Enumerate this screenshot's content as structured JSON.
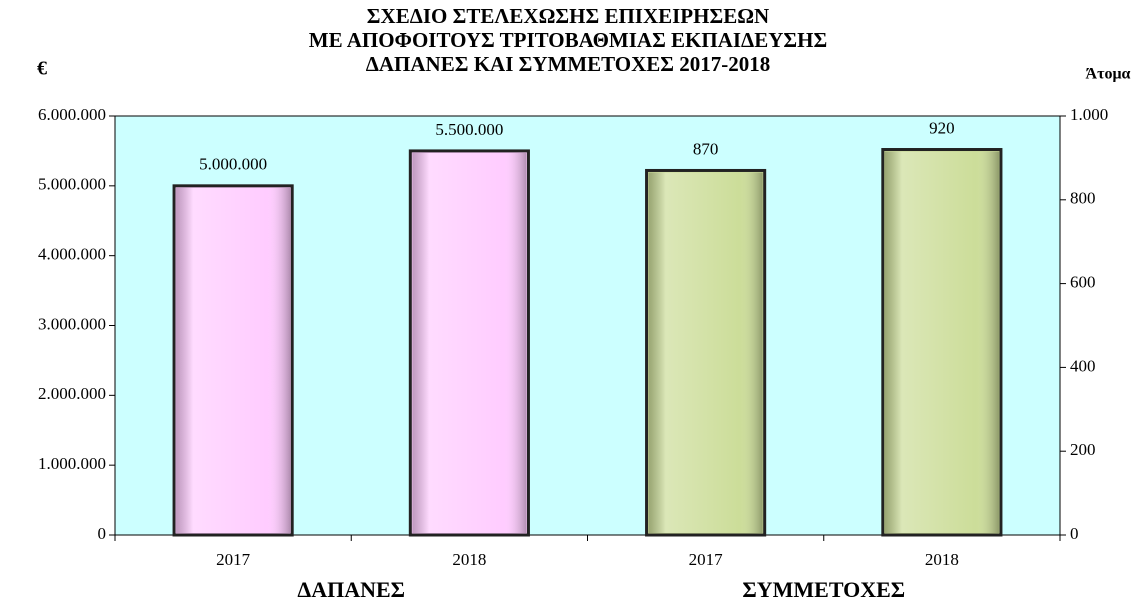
{
  "chart_data": {
    "type": "bar",
    "title": [
      "ΣΧΕΔΙΟ ΣΤΕΛΕΧΩΣΗΣ ΕΠΙΧΕΙΡΗΣΕΩΝ",
      "ΜΕ ΑΠΟΦΟΙΤΟΥΣ ΤΡΙΤΟΒΑΘΜΙΑΣ ΕΚΠΑΙΔΕΥΣΗΣ",
      "ΔΑΠΑΝΕΣ ΚΑΙ ΣΥΜΜΕΤΟΧΕΣ 2017-2018"
    ],
    "y_label": "€",
    "y2_label": "Άτομα",
    "categories": [
      "2017",
      "2018",
      "2017",
      "2018"
    ],
    "series": [
      {
        "name": "ΔΑΠΑΝΕΣ",
        "color": "#ffccff",
        "values": [
          5000000,
          5500000,
          null,
          null
        ],
        "value_labels": [
          "5.000.000",
          "5.500.000",
          null,
          null
        ]
      },
      {
        "name": "ΣΥΜΜΕΤΟΧΕΣ",
        "color": "#ccdd99",
        "axis": "y2",
        "values": [
          null,
          null,
          870,
          920
        ]
      }
    ],
    "ylim": [
      0,
      6000000
    ],
    "yticks": [
      0,
      {
        "value": 1000000,
        "label": "1.000.000"
      },
      {
        "value": 2000000,
        "label": "2.000.000"
      },
      {
        "value": 3000000,
        "label": "3.000.000"
      },
      {
        "value": 4000000,
        "label": "4.000.000"
      },
      {
        "value": 5000000,
        "label": "5.000.000"
      },
      {
        "value": 6000000,
        "label": "6.000.000"
      }
    ],
    "y2lim": [
      0,
      1000
    ],
    "y2ticks": [
      0,
      200,
      400,
      600,
      800,
      {
        "value": 1000,
        "label": "1.000"
      }
    ],
    "background": "#ccffff"
  }
}
